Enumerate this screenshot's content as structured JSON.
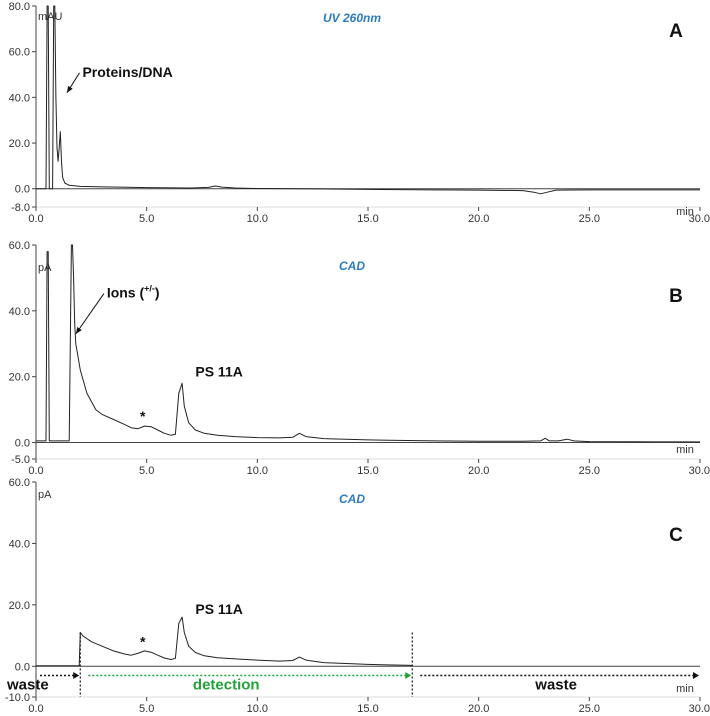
{
  "chart_data": [
    {
      "type": "line",
      "panel": "A",
      "title": "UV 260nm",
      "ylabel": "mAU",
      "xlabel": "min",
      "xlim": [
        0,
        30
      ],
      "ylim": [
        -8,
        80
      ],
      "x_ticks": [
        "0.0",
        "5.0",
        "10.0",
        "15.0",
        "20.0",
        "25.0",
        "30.0"
      ],
      "x_tick_values": [
        0,
        5,
        10,
        15,
        20,
        25,
        30
      ],
      "y_ticks": [
        "80.0",
        "60.0",
        "40.0",
        "20.0",
        "0.0",
        "-8.0"
      ],
      "y_tick_values": [
        80,
        60,
        40,
        20,
        0,
        -8
      ],
      "annotations": [
        {
          "text": "Proteins/DNA",
          "x": 2.1,
          "y": 49,
          "arrow_to": [
            1.4,
            42
          ]
        }
      ],
      "series": [
        {
          "x": [
            0,
            0.45,
            0.5,
            0.55,
            0.6,
            0.75,
            0.8,
            0.85,
            0.9,
            0.95,
            1.0,
            1.05,
            1.1,
            1.15,
            1.2,
            1.3,
            1.5,
            2,
            3,
            5,
            7,
            7.8,
            8.1,
            8.4,
            9,
            10,
            12,
            15,
            18,
            20,
            22,
            22.5,
            22.8,
            23.1,
            23.5,
            25,
            28,
            30
          ],
          "y": [
            0,
            0,
            80,
            80,
            0,
            0,
            80,
            80,
            40,
            18,
            12,
            18,
            25,
            12,
            5,
            2.5,
            1.5,
            1,
            0.8,
            0.5,
            0.3,
            0.6,
            1.2,
            0.7,
            0.3,
            0.1,
            0,
            -0.3,
            -0.5,
            -0.6,
            -0.8,
            -1.5,
            -2.2,
            -1.5,
            -0.6,
            -0.5,
            -0.5,
            -0.5
          ]
        }
      ]
    },
    {
      "type": "line",
      "panel": "B",
      "title": "CAD",
      "ylabel": "pA",
      "xlabel": "min",
      "xlim": [
        0,
        30
      ],
      "ylim": [
        -5,
        60
      ],
      "x_ticks": [
        "0.0",
        "5.0",
        "10.0",
        "15.0",
        "20.0",
        "25.0",
        "30.0"
      ],
      "x_tick_values": [
        0,
        5,
        10,
        15,
        20,
        25,
        30
      ],
      "y_ticks": [
        "60.0",
        "40.0",
        "20.0",
        "0.0",
        "-5.0"
      ],
      "y_tick_values": [
        60,
        40,
        20,
        0,
        -5
      ],
      "annotations": [
        {
          "text": "Ions (",
          "sup": "+/-",
          "tail": ")",
          "x": 3.2,
          "y": 44,
          "arrow_to": [
            1.8,
            33
          ]
        },
        {
          "text": "PS 11A",
          "x": 7.2,
          "y": 20
        },
        {
          "text": "*",
          "x": 4.7,
          "y": 6.5
        }
      ],
      "series": [
        {
          "x": [
            0,
            0.45,
            0.5,
            0.55,
            0.6,
            0.65,
            1.5,
            1.6,
            1.65,
            1.7,
            1.75,
            1.8,
            2,
            2.3,
            2.7,
            3,
            3.5,
            4,
            4.3,
            4.6,
            4.9,
            5.2,
            5.5,
            5.8,
            6.1,
            6.3,
            6.45,
            6.6,
            6.7,
            6.9,
            7.2,
            7.6,
            8.2,
            9,
            10,
            11,
            11.6,
            11.9,
            12.2,
            13,
            15,
            18,
            20,
            22,
            22.8,
            23,
            23.2,
            23.6,
            24,
            24.3,
            25,
            28,
            30
          ],
          "y": [
            0.5,
            0.5,
            58,
            58,
            0.5,
            0.5,
            0.5,
            60,
            60,
            50,
            36,
            30,
            22,
            15,
            10,
            8.5,
            7,
            5.5,
            4.5,
            4.2,
            5,
            4.8,
            3.8,
            2.8,
            2.2,
            2.5,
            15,
            18,
            11,
            6,
            3.8,
            2.8,
            2.2,
            1.8,
            1.5,
            1.4,
            1.6,
            2.8,
            1.8,
            1.2,
            0.8,
            0.5,
            0.4,
            0.4,
            0.5,
            1.3,
            0.5,
            0.5,
            1.0,
            0.5,
            0.3,
            0.2,
            0.2
          ]
        }
      ]
    },
    {
      "type": "line",
      "panel": "C",
      "title": "CAD",
      "ylabel": "pA",
      "xlabel": "min",
      "xlim": [
        0,
        30
      ],
      "ylim": [
        -10,
        60
      ],
      "x_ticks": [
        "0.0",
        "5.0",
        "10.0",
        "15.0",
        "20.0",
        "25.0",
        "30.0"
      ],
      "x_tick_values": [
        0,
        5,
        10,
        15,
        20,
        25,
        30
      ],
      "y_ticks": [
        "60.0",
        "40.0",
        "20.0",
        "0.0",
        "-10.0"
      ],
      "y_tick_values": [
        60,
        40,
        20,
        0,
        -10
      ],
      "annotations": [
        {
          "text": "PS 11A",
          "x": 7.2,
          "y": 17
        },
        {
          "text": "*",
          "x": 4.7,
          "y": 6.5
        }
      ],
      "regions": [
        {
          "label": "waste",
          "from": 0,
          "to": 2,
          "color": "#111111"
        },
        {
          "label": "detection",
          "from": 2,
          "to": 17,
          "color": "#22a33a"
        },
        {
          "label": "waste",
          "from": 17,
          "to": 30,
          "color": "#111111"
        }
      ],
      "series": [
        {
          "x": [
            0,
            0.5,
            1,
            1.5,
            1.95,
            2,
            2.1,
            2.5,
            3,
            3.5,
            4,
            4.3,
            4.6,
            4.9,
            5.2,
            5.5,
            5.8,
            6.1,
            6.3,
            6.45,
            6.6,
            6.7,
            6.9,
            7.2,
            7.6,
            8.2,
            9,
            10,
            11,
            11.6,
            11.9,
            12.2,
            13,
            15,
            17
          ],
          "y": [
            0.2,
            0.2,
            0.2,
            0.2,
            0.2,
            11,
            10,
            8,
            6.5,
            5,
            4,
            3.6,
            4.2,
            5,
            4.6,
            3.6,
            2.7,
            2.2,
            2.6,
            14,
            16,
            11,
            6.5,
            4.5,
            3.4,
            2.8,
            2.4,
            2,
            1.7,
            1.9,
            3,
            2,
            1.2,
            0.6,
            0.3
          ]
        }
      ]
    }
  ],
  "panels_style": {
    "trace_color": "#222222",
    "title_color": "#2b7bc0",
    "detection_color": "#22a33a"
  }
}
